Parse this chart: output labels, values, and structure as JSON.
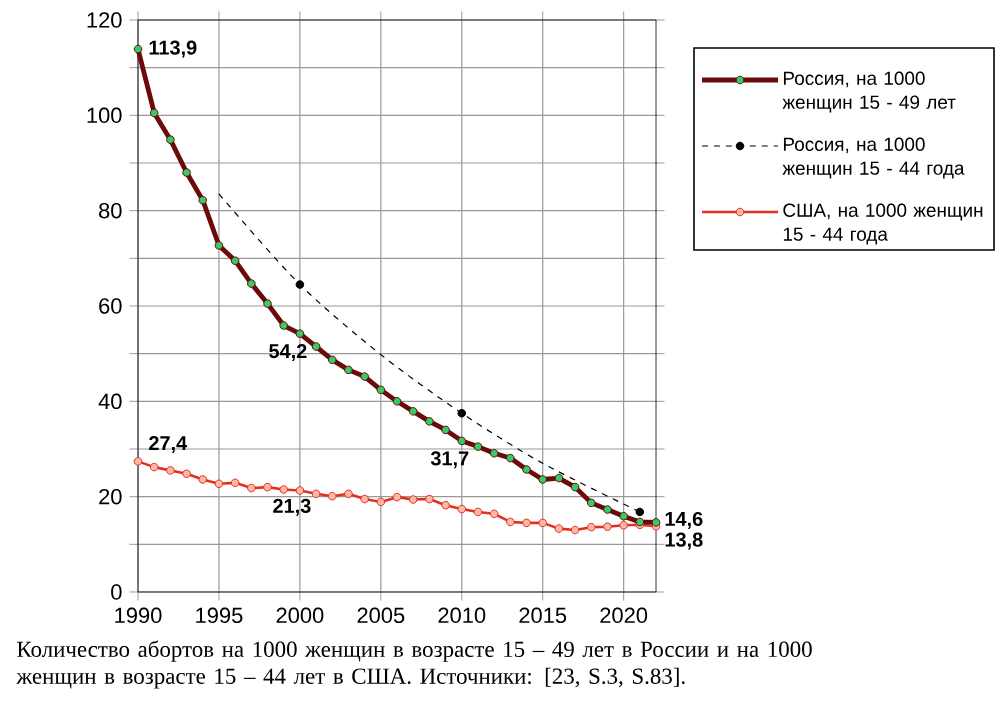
{
  "chart_data": {
    "type": "line",
    "xlim": [
      1990,
      2022
    ],
    "ylim": [
      0,
      120
    ],
    "xticks": [
      1990,
      1995,
      2000,
      2005,
      2010,
      2015,
      2020
    ],
    "yticks": [
      0,
      {
        "value": 10,
        "label": null
      },
      20,
      {
        "value": 30,
        "label": null
      },
      40,
      {
        "value": 50,
        "label": null
      },
      60,
      {
        "value": 70,
        "label": null
      },
      80,
      {
        "value": 90,
        "label": null
      },
      100,
      {
        "value": 110,
        "label": null
      },
      120
    ],
    "grid": true,
    "legend": "right",
    "series": [
      {
        "name": "Россия, на 1000 женщин 15 - 49 лет",
        "color": "#6b0a0a",
        "marker": "circle",
        "line_style": "solid",
        "x": [
          1990,
          1991,
          1992,
          1993,
          1994,
          1995,
          1996,
          1997,
          1998,
          1999,
          2000,
          2001,
          2002,
          2003,
          2004,
          2005,
          2006,
          2007,
          2008,
          2009,
          2010,
          2011,
          2012,
          2013,
          2014,
          2015,
          2016,
          2017,
          2018,
          2019,
          2020,
          2021,
          2022
        ],
        "values": [
          113.9,
          100.5,
          94.9,
          88.0,
          82.2,
          72.7,
          69.5,
          64.7,
          60.5,
          55.9,
          54.2,
          51.5,
          48.7,
          46.6,
          45.2,
          42.4,
          40.0,
          37.9,
          35.8,
          34.0,
          31.7,
          30.5,
          29.1,
          28.1,
          25.7,
          23.6,
          23.9,
          22.0,
          18.7,
          17.3,
          15.9,
          14.7,
          14.6
        ]
      },
      {
        "type": "line",
        "color": "#000000",
        "line_style": "dashed",
        "marker": "none",
        "x": [
          1995,
          2000,
          2005,
          2010,
          2015,
          2021
        ],
        "values": [
          83.5,
          64.5,
          49.8,
          37.5,
          27.0,
          16.8
        ]
      },
      {
        "type": "scatter",
        "name": "Россия, на 1000 женщин 15 - 44 года",
        "color": "#000000",
        "marker": "circle",
        "line_style": "dashed",
        "x": [
          2000,
          2010,
          2021
        ],
        "values": [
          64.5,
          37.5,
          16.8
        ]
      },
      {
        "name": "США, на 1000 женщин 15 - 44 года",
        "color": "#e03020",
        "marker": "circle",
        "line_style": "solid",
        "x": [
          1990,
          1991,
          1992,
          1993,
          1994,
          1995,
          1996,
          1997,
          1998,
          1999,
          2000,
          2001,
          2002,
          2003,
          2004,
          2005,
          2006,
          2007,
          2008,
          2009,
          2010,
          2011,
          2012,
          2013,
          2014,
          2015,
          2016,
          2017,
          2018,
          2019,
          2020,
          2021,
          2022
        ],
        "values": [
          27.4,
          26.2,
          25.5,
          24.8,
          23.6,
          22.7,
          22.9,
          21.8,
          22.0,
          21.5,
          21.3,
          20.6,
          20.1,
          20.6,
          19.5,
          18.9,
          19.9,
          19.4,
          19.5,
          18.2,
          17.4,
          16.8,
          16.4,
          14.7,
          14.5,
          14.5,
          13.3,
          13.0,
          13.6,
          13.7,
          14.0,
          14.1,
          13.8
        ]
      }
    ],
    "annotations": [
      {
        "text": "113,9",
        "x": 1990,
        "y": 113.9
      },
      {
        "text": "54,2",
        "x": 2000,
        "y": 54.2
      },
      {
        "text": "31,7",
        "x": 2010,
        "y": 31.7
      },
      {
        "text": "14,6",
        "x": 2022,
        "y": 14.6
      },
      {
        "text": "27,4",
        "x": 1990,
        "y": 27.4
      },
      {
        "text": "21,3",
        "x": 2000,
        "y": 21.3
      },
      {
        "text": "13,8",
        "x": 2022,
        "y": 13.8
      },
      "Количество абортов на 1000 женщин в возрасте 15 – 49 лет в России и на 1000 женщин в возрасте 15 – 44 лет в США. Источники: [23, S.3, S.83]."
    ]
  }
}
